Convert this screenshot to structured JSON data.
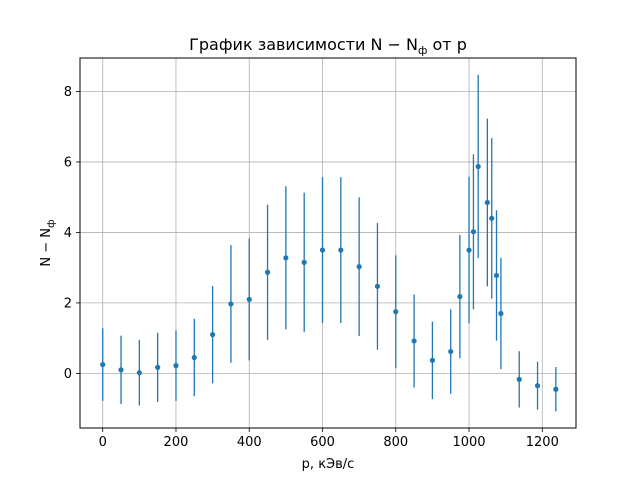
{
  "chart_data": {
    "type": "scatter",
    "title": "График зависимости N − N",
    "title_subscript": "ф",
    "title_suffix": " от p",
    "xlabel": "p, кЭв/с",
    "ylabel": "N − N",
    "ylabel_subscript": "ф",
    "xlim": [
      -62,
      1292
    ],
    "ylim": [
      -1.55,
      8.95
    ],
    "xticks": [
      0,
      200,
      400,
      600,
      800,
      1000,
      1200
    ],
    "yticks": [
      0,
      2,
      4,
      6,
      8
    ],
    "grid": true,
    "series": [
      {
        "color": "#1f77b4",
        "x": [
          0,
          50,
          100,
          150,
          200,
          250,
          300,
          350,
          400,
          450,
          500,
          550,
          600,
          650,
          700,
          750,
          800,
          850,
          900,
          950,
          975,
          1000,
          1012,
          1025,
          1050,
          1062,
          1075,
          1087,
          1137,
          1187,
          1237
        ],
        "y": [
          0.25,
          0.1,
          0.02,
          0.17,
          0.22,
          0.45,
          1.1,
          1.97,
          2.1,
          2.87,
          3.28,
          3.15,
          3.5,
          3.5,
          3.03,
          2.47,
          1.75,
          0.92,
          0.37,
          0.62,
          2.18,
          3.5,
          4.02,
          5.87,
          4.85,
          4.4,
          2.78,
          1.7,
          -0.17,
          -0.35,
          -0.45
        ],
        "err": [
          1.03,
          0.97,
          0.93,
          0.98,
          1.0,
          1.1,
          1.38,
          1.67,
          1.73,
          1.92,
          2.03,
          1.98,
          2.07,
          2.07,
          1.97,
          1.8,
          1.6,
          1.32,
          1.1,
          1.2,
          1.75,
          2.08,
          2.2,
          2.6,
          2.38,
          2.28,
          1.85,
          1.58,
          0.8,
          0.68,
          0.63
        ]
      }
    ]
  }
}
